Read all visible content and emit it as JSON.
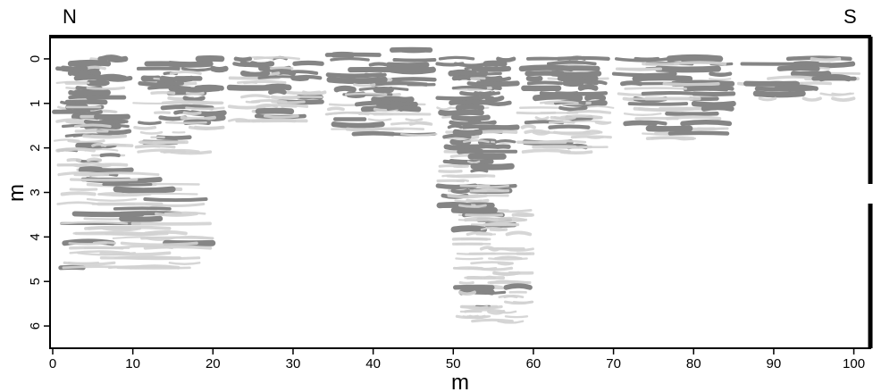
{
  "figure": {
    "left_label": "N",
    "right_label": "S"
  },
  "chart_data": {
    "type": "heatmap",
    "title": "",
    "xlabel": "m",
    "ylabel": "m",
    "xlim": [
      0,
      101.5
    ],
    "ylim": [
      -0.5,
      6.5
    ],
    "y_inverted": true,
    "grid": false,
    "x_ticks": [
      0,
      10,
      20,
      30,
      40,
      50,
      60,
      70,
      80,
      90,
      100
    ],
    "y_ticks": [
      0,
      1,
      2,
      3,
      4,
      5,
      6
    ],
    "colors": {
      "strong": "#858585",
      "weak": "#d2d2d2",
      "background": "#ffffff"
    },
    "reflector_zones": [
      {
        "x_from": 0,
        "x_to": 10,
        "depth_from": 0,
        "depth_to": 2.6,
        "intensity": 0.9
      },
      {
        "x_from": 10,
        "x_to": 22,
        "depth_from": 0,
        "depth_to": 2.2,
        "intensity": 0.75
      },
      {
        "x_from": 22,
        "x_to": 34,
        "depth_from": 0,
        "depth_to": 1.5,
        "intensity": 0.6
      },
      {
        "x_from": 34,
        "x_to": 48,
        "depth_from": -0.2,
        "depth_to": 1.8,
        "intensity": 1.0
      },
      {
        "x_from": 48,
        "x_to": 58,
        "depth_from": 0,
        "depth_to": 3.4,
        "intensity": 0.95
      },
      {
        "x_from": 58,
        "x_to": 70,
        "depth_from": 0,
        "depth_to": 2.2,
        "intensity": 0.7
      },
      {
        "x_from": 70,
        "x_to": 85,
        "depth_from": 0,
        "depth_to": 1.9,
        "intensity": 0.8
      },
      {
        "x_from": 85,
        "x_to": 101,
        "depth_from": 0,
        "depth_to": 1.0,
        "intensity": 0.75
      },
      {
        "x_from": 50,
        "x_to": 60,
        "depth_from": 3.4,
        "depth_to": 6.0,
        "intensity": 0.25
      },
      {
        "x_from": 0,
        "x_to": 20,
        "depth_from": 2.6,
        "depth_to": 4.8,
        "intensity": 0.3
      }
    ]
  }
}
